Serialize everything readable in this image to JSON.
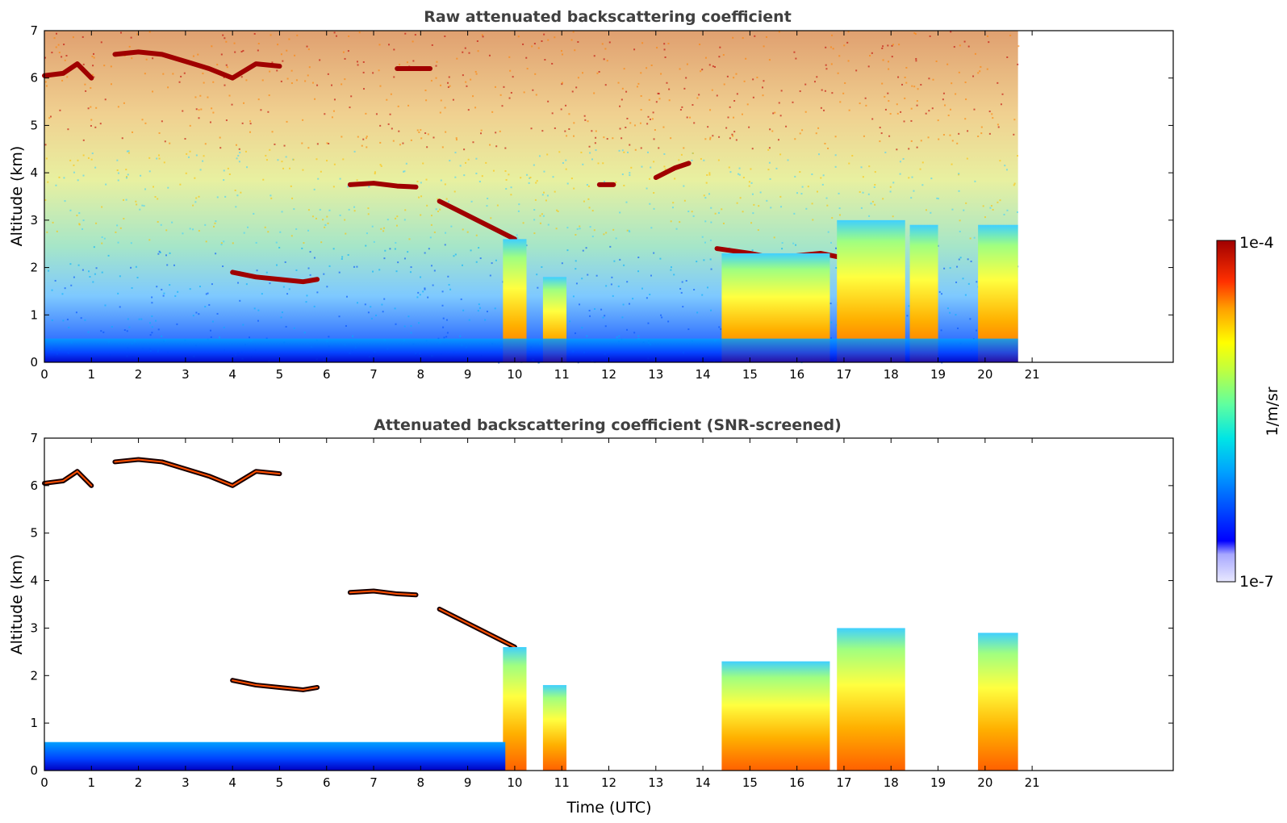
{
  "chart_data": [
    {
      "type": "heatmap",
      "title": "Raw attenuated backscattering coefficient",
      "xlabel": "",
      "ylabel": "Altitude (km)",
      "xlim": [
        0,
        24
      ],
      "ylim": [
        0,
        7
      ],
      "x_ticks": [
        0,
        1,
        2,
        3,
        4,
        5,
        6,
        7,
        8,
        9,
        10,
        11,
        12,
        13,
        14,
        15,
        16,
        17,
        18,
        19,
        20,
        21
      ],
      "y_ticks": [
        0,
        1,
        2,
        3,
        4,
        5,
        6,
        7
      ],
      "data_extent_hours": [
        0,
        20.7
      ],
      "scale": "log",
      "features": [
        {
          "kind": "cloud_layer",
          "x": [
            0.0,
            0.4,
            0.7,
            1.0
          ],
          "y": [
            6.05,
            6.1,
            6.3,
            6.0
          ]
        },
        {
          "kind": "cloud_layer",
          "x": [
            1.5,
            2.0,
            2.5,
            3.0,
            3.5,
            4.0,
            4.5,
            5.0
          ],
          "y": [
            6.5,
            6.55,
            6.5,
            6.35,
            6.2,
            6.0,
            6.3,
            6.25
          ]
        },
        {
          "kind": "cloud_layer",
          "x": [
            7.5,
            8.0,
            8.2
          ],
          "y": [
            6.2,
            6.2,
            6.2
          ]
        },
        {
          "kind": "cloud_layer",
          "x": [
            6.5,
            7.0,
            7.5,
            7.9
          ],
          "y": [
            3.75,
            3.78,
            3.72,
            3.7
          ]
        },
        {
          "kind": "cloud_layer",
          "x": [
            8.4,
            8.8,
            9.2,
            9.6,
            10.0
          ],
          "y": [
            3.4,
            3.2,
            3.0,
            2.8,
            2.6
          ]
        },
        {
          "kind": "cloud_layer",
          "x": [
            11.8,
            12.1
          ],
          "y": [
            3.75,
            3.75
          ]
        },
        {
          "kind": "cloud_layer",
          "x": [
            13.0,
            13.4,
            13.7
          ],
          "y": [
            3.9,
            4.1,
            4.2
          ]
        },
        {
          "kind": "cloud_layer",
          "x": [
            4.0,
            4.5,
            5.0,
            5.5,
            5.8
          ],
          "y": [
            1.9,
            1.8,
            1.75,
            1.7,
            1.75
          ]
        },
        {
          "kind": "cloud_layer",
          "x": [
            14.3,
            15.0,
            15.5,
            16.0,
            16.5,
            17.0
          ],
          "y": [
            2.4,
            2.3,
            2.2,
            2.25,
            2.3,
            2.2
          ]
        },
        {
          "kind": "cloud_column",
          "x_range": [
            9.75,
            10.25
          ],
          "top": 2.6
        },
        {
          "kind": "cloud_column",
          "x_range": [
            10.6,
            11.1
          ],
          "top": 1.8
        },
        {
          "kind": "cloud_column",
          "x_range": [
            14.4,
            16.7
          ],
          "top": 2.3
        },
        {
          "kind": "cloud_column",
          "x_range": [
            16.85,
            18.3
          ],
          "top": 3.0
        },
        {
          "kind": "cloud_column",
          "x_range": [
            18.4,
            19.0
          ],
          "top": 2.9
        },
        {
          "kind": "cloud_column",
          "x_range": [
            19.85,
            20.7
          ],
          "top": 2.9
        },
        {
          "kind": "boundary_layer",
          "x_range": [
            0,
            20.7
          ],
          "top": 0.5
        }
      ]
    },
    {
      "type": "heatmap",
      "title": "Attenuated backscattering coefficient (SNR-screened)",
      "xlabel": "Time (UTC)",
      "ylabel": "Altitude (km)",
      "xlim": [
        0,
        24
      ],
      "ylim": [
        0,
        7
      ],
      "x_ticks": [
        0,
        1,
        2,
        3,
        4,
        5,
        6,
        7,
        8,
        9,
        10,
        11,
        12,
        13,
        14,
        15,
        16,
        17,
        18,
        19,
        20,
        21
      ],
      "y_ticks": [
        0,
        1,
        2,
        3,
        4,
        5,
        6,
        7
      ],
      "data_extent_hours": [
        0,
        20.7
      ],
      "scale": "log",
      "features": [
        {
          "kind": "cloud_layer",
          "x": [
            0.0,
            0.4,
            0.7,
            1.0
          ],
          "y": [
            6.05,
            6.1,
            6.3,
            6.0
          ]
        },
        {
          "kind": "cloud_layer",
          "x": [
            1.5,
            2.0,
            2.5,
            3.0,
            3.5,
            4.0,
            4.5,
            5.0
          ],
          "y": [
            6.5,
            6.55,
            6.5,
            6.35,
            6.2,
            6.0,
            6.3,
            6.25
          ]
        },
        {
          "kind": "cloud_layer",
          "x": [
            6.5,
            7.0,
            7.5,
            7.9
          ],
          "y": [
            3.75,
            3.78,
            3.72,
            3.7
          ]
        },
        {
          "kind": "cloud_layer",
          "x": [
            8.4,
            8.8,
            9.2,
            9.6,
            10.0
          ],
          "y": [
            3.4,
            3.2,
            3.0,
            2.8,
            2.6
          ]
        },
        {
          "kind": "cloud_layer",
          "x": [
            4.0,
            4.5,
            5.0,
            5.5,
            5.8
          ],
          "y": [
            1.9,
            1.8,
            1.75,
            1.7,
            1.75
          ]
        },
        {
          "kind": "cloud_column",
          "x_range": [
            9.75,
            10.25
          ],
          "top": 2.6
        },
        {
          "kind": "cloud_column",
          "x_range": [
            10.6,
            11.1
          ],
          "top": 1.8
        },
        {
          "kind": "cloud_column",
          "x_range": [
            14.4,
            16.7
          ],
          "top": 2.3
        },
        {
          "kind": "cloud_column",
          "x_range": [
            16.85,
            18.3
          ],
          "top": 3.0
        },
        {
          "kind": "cloud_column",
          "x_range": [
            19.85,
            20.7
          ],
          "top": 2.9
        },
        {
          "kind": "boundary_layer",
          "x_range": [
            0,
            9.8
          ],
          "top": 0.6
        }
      ]
    }
  ],
  "colorbar": {
    "label": "1/m/sr",
    "max_label": "1e-4",
    "min_label": "1e-7",
    "min_value": 1e-07,
    "max_value": 0.0001,
    "colors": [
      "#e8e8ff",
      "#c8c8ff",
      "#a8a8ff",
      "#0000ff",
      "#0040ff",
      "#0080ff",
      "#00bfff",
      "#00e5e5",
      "#40ffbf",
      "#80ff80",
      "#bfff40",
      "#ffff00",
      "#ffbf00",
      "#ff8000",
      "#ff4000",
      "#e00000",
      "#a00000"
    ]
  }
}
